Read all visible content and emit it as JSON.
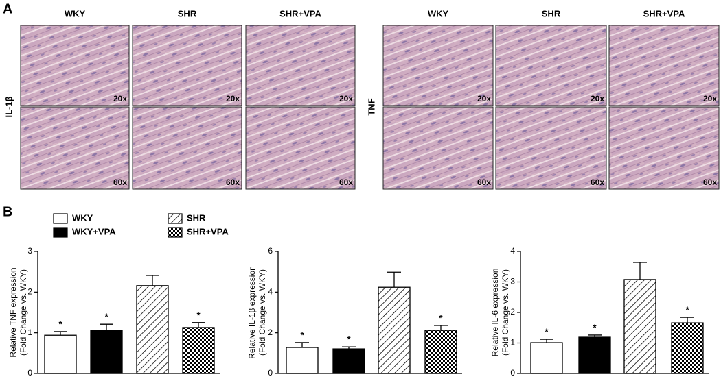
{
  "panel_a": {
    "label": "A",
    "groups": [
      {
        "stain": "IL-1β",
        "columns": [
          "WKY",
          "SHR",
          "SHR+VPA"
        ],
        "magnifications": [
          "20x",
          "60x"
        ]
      },
      {
        "stain": "TNF",
        "columns": [
          "WKY",
          "SHR",
          "SHR+VPA"
        ],
        "magnifications": [
          "20x",
          "60x"
        ]
      }
    ]
  },
  "panel_b": {
    "label": "B",
    "legend": [
      {
        "name": "WKY",
        "fill": "white"
      },
      {
        "name": "WKY+VPA",
        "fill": "black"
      },
      {
        "name": "SHR",
        "fill": "hatch"
      },
      {
        "name": "SHR+VPA",
        "fill": "checker"
      }
    ]
  },
  "chart_data": [
    {
      "type": "bar",
      "ylabel": [
        "Relative TNF expression",
        "(Fold Change vs. WKY)"
      ],
      "values": [
        0.94,
        1.06,
        2.16,
        1.13
      ],
      "errors": [
        0.09,
        0.15,
        0.25,
        0.12
      ],
      "markers": [
        "*",
        "*",
        null,
        "*"
      ],
      "ylim": [
        0,
        3
      ],
      "yticks": [
        0,
        1,
        2,
        3
      ]
    },
    {
      "type": "bar",
      "ylabel": [
        "Relative IL-1β expression",
        "(Fold Change vs. WKY)"
      ],
      "values": [
        1.28,
        1.21,
        4.24,
        2.12
      ],
      "errors": [
        0.24,
        0.1,
        0.74,
        0.24
      ],
      "markers": [
        "*",
        "*",
        null,
        "*"
      ],
      "ylim": [
        0,
        6
      ],
      "yticks": [
        0,
        2,
        4,
        6
      ]
    },
    {
      "type": "bar",
      "ylabel": [
        "Relative IL-6 expression",
        "(Fold Change vs. WKY)"
      ],
      "values": [
        1.01,
        1.19,
        3.08,
        1.66
      ],
      "errors": [
        0.11,
        0.07,
        0.56,
        0.18
      ],
      "markers": [
        "*",
        "*",
        null,
        "*"
      ],
      "ylim": [
        0,
        4
      ],
      "yticks": [
        0,
        1,
        2,
        3,
        4
      ]
    }
  ]
}
